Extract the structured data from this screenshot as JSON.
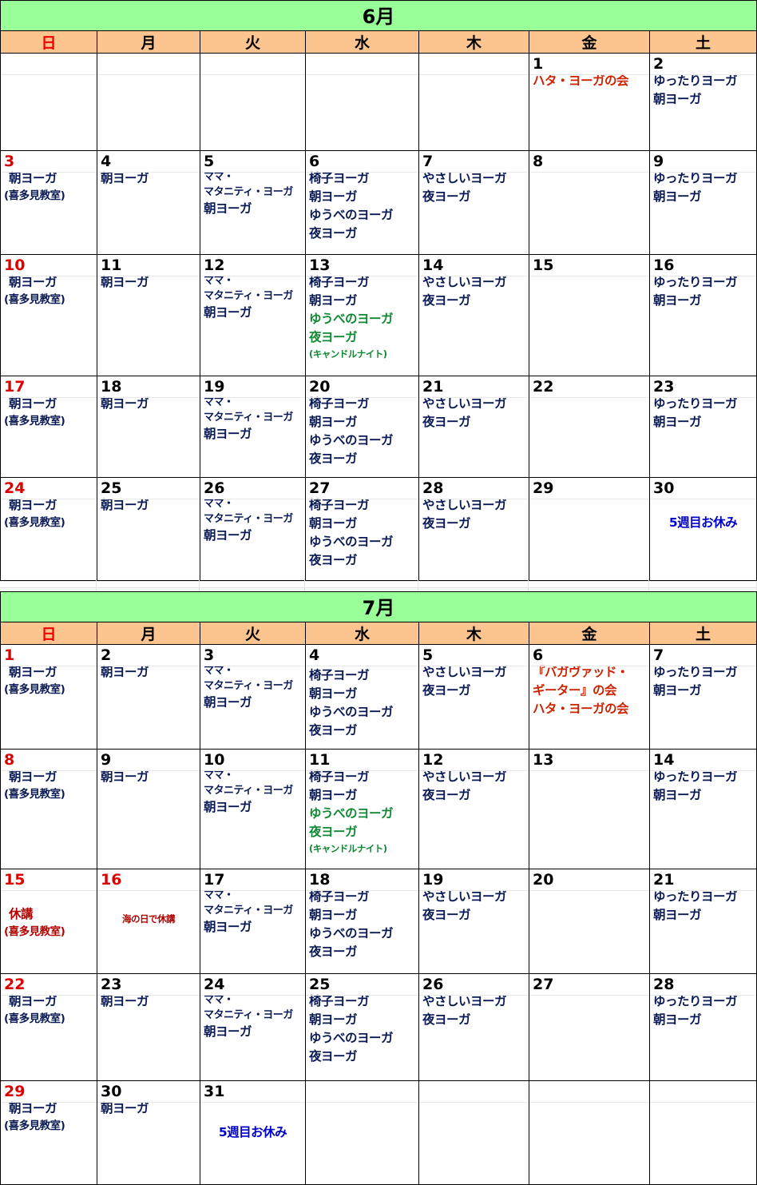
{
  "weekdays": [
    "日",
    "月",
    "火",
    "水",
    "木",
    "金",
    "土"
  ],
  "june": {
    "title": "6月",
    "weeks": [
      [
        {
          "day": "",
          "events": []
        },
        {
          "day": "",
          "events": []
        },
        {
          "day": "",
          "events": []
        },
        {
          "day": "",
          "events": []
        },
        {
          "day": "",
          "events": []
        },
        {
          "day": "1",
          "events": [
            {
              "text": "ハタ・ヨーガの会",
              "style": "red"
            }
          ]
        },
        {
          "day": "2",
          "events": [
            {
              "text": "ゆったりヨーガ"
            },
            {
              "text": "朝ヨーガ"
            }
          ]
        }
      ],
      [
        {
          "day": "3",
          "events": [
            {
              "text": "朝ヨーガ",
              "style": "ind"
            },
            {
              "text": "(喜多見教室)",
              "style": "small"
            }
          ]
        },
        {
          "day": "4",
          "events": [
            {
              "text": "朝ヨーガ"
            }
          ]
        },
        {
          "day": "5",
          "events": [
            {
              "text": "ママ・",
              "style": "sub"
            },
            {
              "text": "マタニティ・ヨーガ",
              "style": "sub"
            },
            {
              "text": "朝ヨーガ"
            }
          ]
        },
        {
          "day": "6",
          "events": [
            {
              "text": "椅子ヨーガ"
            },
            {
              "text": "朝ヨーガ"
            },
            {
              "text": "ゆうべのヨーガ"
            },
            {
              "text": "夜ヨーガ"
            }
          ]
        },
        {
          "day": "7",
          "events": [
            {
              "text": "やさしいヨーガ"
            },
            {
              "text": "夜ヨーガ"
            }
          ]
        },
        {
          "day": "8",
          "events": []
        },
        {
          "day": "9",
          "events": [
            {
              "text": "ゆったりヨーガ"
            },
            {
              "text": "朝ヨーガ"
            }
          ]
        }
      ],
      [
        {
          "day": "10",
          "events": [
            {
              "text": "朝ヨーガ",
              "style": "ind"
            },
            {
              "text": "(喜多見教室)",
              "style": "small"
            }
          ]
        },
        {
          "day": "11",
          "events": [
            {
              "text": "朝ヨーガ"
            }
          ]
        },
        {
          "day": "12",
          "events": [
            {
              "text": "ママ・",
              "style": "sub"
            },
            {
              "text": "マタニティ・ヨーガ",
              "style": "sub"
            },
            {
              "text": "朝ヨーガ"
            }
          ]
        },
        {
          "day": "13",
          "events": [
            {
              "text": "椅子ヨーガ"
            },
            {
              "text": "朝ヨーガ"
            },
            {
              "text": "ゆうべのヨーガ",
              "style": "green"
            },
            {
              "text": "夜ヨーガ",
              "style": "green"
            },
            {
              "text": "(キャンドルナイト)",
              "style": "green-xs"
            }
          ]
        },
        {
          "day": "14",
          "events": [
            {
              "text": "やさしいヨーガ"
            },
            {
              "text": "夜ヨーガ"
            }
          ]
        },
        {
          "day": "15",
          "events": []
        },
        {
          "day": "16",
          "events": [
            {
              "text": "ゆったりヨーガ"
            },
            {
              "text": "朝ヨーガ"
            }
          ]
        }
      ],
      [
        {
          "day": "17",
          "events": [
            {
              "text": "朝ヨーガ",
              "style": "ind"
            },
            {
              "text": "(喜多見教室)",
              "style": "small"
            }
          ]
        },
        {
          "day": "18",
          "events": [
            {
              "text": "朝ヨーガ"
            }
          ]
        },
        {
          "day": "19",
          "events": [
            {
              "text": "ママ・",
              "style": "sub"
            },
            {
              "text": "マタニティ・ヨーガ",
              "style": "sub"
            },
            {
              "text": "朝ヨーガ"
            }
          ]
        },
        {
          "day": "20",
          "events": [
            {
              "text": "椅子ヨーガ"
            },
            {
              "text": "朝ヨーガ"
            },
            {
              "text": "ゆうべのヨーガ"
            },
            {
              "text": "夜ヨーガ"
            }
          ]
        },
        {
          "day": "21",
          "events": [
            {
              "text": "やさしいヨーガ"
            },
            {
              "text": "夜ヨーガ"
            }
          ]
        },
        {
          "day": "22",
          "events": []
        },
        {
          "day": "23",
          "events": [
            {
              "text": "ゆったりヨーガ"
            },
            {
              "text": "朝ヨーガ"
            }
          ]
        }
      ],
      [
        {
          "day": "24",
          "events": [
            {
              "text": "朝ヨーガ",
              "style": "ind"
            },
            {
              "text": "(喜多見教室)",
              "style": "small"
            }
          ]
        },
        {
          "day": "25",
          "events": [
            {
              "text": "朝ヨーガ"
            }
          ]
        },
        {
          "day": "26",
          "events": [
            {
              "text": "ママ・",
              "style": "sub"
            },
            {
              "text": "マタニティ・ヨーガ",
              "style": "sub"
            },
            {
              "text": "朝ヨーガ"
            }
          ]
        },
        {
          "day": "27",
          "events": [
            {
              "text": "椅子ヨーガ"
            },
            {
              "text": "朝ヨーガ"
            },
            {
              "text": "ゆうべのヨーガ"
            },
            {
              "text": "夜ヨーガ"
            }
          ]
        },
        {
          "day": "28",
          "events": [
            {
              "text": "やさしいヨーガ"
            },
            {
              "text": "夜ヨーガ"
            }
          ]
        },
        {
          "day": "29",
          "events": []
        },
        {
          "day": "30",
          "events": [
            {
              "text": "5週目お休み",
              "style": "blue-rest"
            }
          ]
        }
      ]
    ]
  },
  "july": {
    "title": "7月",
    "weeks": [
      [
        {
          "day": "1",
          "events": [
            {
              "text": "朝ヨーガ",
              "style": "ind"
            },
            {
              "text": "(喜多見教室)",
              "style": "small"
            }
          ]
        },
        {
          "day": "2",
          "events": [
            {
              "text": "朝ヨーガ"
            }
          ]
        },
        {
          "day": "3",
          "events": [
            {
              "text": "ママ・",
              "style": "sub"
            },
            {
              "text": "マタニティ・ヨーガ",
              "style": "sub"
            },
            {
              "text": "朝ヨーガ"
            }
          ]
        },
        {
          "day": "4",
          "events": [
            {
              "text": "椅子ヨーガ",
              "style": "gapsmall"
            },
            {
              "text": "朝ヨーガ"
            },
            {
              "text": "ゆうべのヨーガ"
            },
            {
              "text": "夜ヨーガ"
            }
          ]
        },
        {
          "day": "5",
          "events": [
            {
              "text": "やさしいヨーガ"
            },
            {
              "text": "夜ヨーガ"
            }
          ]
        },
        {
          "day": "6",
          "events": [
            {
              "text": "『バガヴァッド・",
              "style": "red"
            },
            {
              "text": "ギーター』の会",
              "style": "red"
            },
            {
              "text": "ハタ・ヨーガの会",
              "style": "red"
            }
          ]
        },
        {
          "day": "7",
          "events": [
            {
              "text": "ゆったりヨーガ"
            },
            {
              "text": "朝ヨーガ"
            }
          ]
        }
      ],
      [
        {
          "day": "8",
          "events": [
            {
              "text": "朝ヨーガ",
              "style": "ind"
            },
            {
              "text": "(喜多見教室)",
              "style": "small"
            }
          ]
        },
        {
          "day": "9",
          "events": [
            {
              "text": "朝ヨーガ"
            }
          ]
        },
        {
          "day": "10",
          "events": [
            {
              "text": "ママ・",
              "style": "sub"
            },
            {
              "text": "マタニティ・ヨーガ",
              "style": "sub"
            },
            {
              "text": "朝ヨーガ"
            }
          ]
        },
        {
          "day": "11",
          "events": [
            {
              "text": "椅子ヨーガ"
            },
            {
              "text": "朝ヨーガ"
            },
            {
              "text": "ゆうべのヨーガ",
              "style": "green"
            },
            {
              "text": "夜ヨーガ",
              "style": "green"
            },
            {
              "text": "(キャンドルナイト)",
              "style": "green-xs"
            }
          ]
        },
        {
          "day": "12",
          "events": [
            {
              "text": "やさしいヨーガ"
            },
            {
              "text": "夜ヨーガ"
            }
          ]
        },
        {
          "day": "13",
          "events": []
        },
        {
          "day": "14",
          "events": [
            {
              "text": "ゆったりヨーガ"
            },
            {
              "text": "朝ヨーガ"
            }
          ]
        }
      ],
      [
        {
          "day": "15",
          "events": [
            {
              "text": "休講",
              "style": "darkred-rest"
            },
            {
              "text": "(喜多見教室)",
              "style": "darkred-small"
            }
          ]
        },
        {
          "day": "16",
          "events": [
            {
              "text": "海の日で休講",
              "style": "darkred-center"
            }
          ]
        },
        {
          "day": "17",
          "events": [
            {
              "text": "ママ・",
              "style": "sub"
            },
            {
              "text": "マタニティ・ヨーガ",
              "style": "sub"
            },
            {
              "text": "朝ヨーガ"
            }
          ]
        },
        {
          "day": "18",
          "events": [
            {
              "text": "椅子ヨーガ"
            },
            {
              "text": "朝ヨーガ"
            },
            {
              "text": "ゆうべのヨーガ"
            },
            {
              "text": "夜ヨーガ"
            }
          ]
        },
        {
          "day": "19",
          "events": [
            {
              "text": "やさしいヨーガ"
            },
            {
              "text": "夜ヨーガ"
            }
          ]
        },
        {
          "day": "20",
          "events": []
        },
        {
          "day": "21",
          "events": [
            {
              "text": "ゆったりヨーガ"
            },
            {
              "text": "朝ヨーガ"
            }
          ]
        }
      ],
      [
        {
          "day": "22",
          "events": [
            {
              "text": "朝ヨーガ",
              "style": "ind"
            },
            {
              "text": "(喜多見教室)",
              "style": "small"
            }
          ]
        },
        {
          "day": "23",
          "events": [
            {
              "text": "朝ヨーガ"
            }
          ]
        },
        {
          "day": "24",
          "events": [
            {
              "text": "ママ・",
              "style": "sub"
            },
            {
              "text": "マタニティ・ヨーガ",
              "style": "sub"
            },
            {
              "text": "朝ヨーガ"
            }
          ]
        },
        {
          "day": "25",
          "events": [
            {
              "text": "椅子ヨーガ"
            },
            {
              "text": "朝ヨーガ"
            },
            {
              "text": "ゆうべのヨーガ"
            },
            {
              "text": "夜ヨーガ"
            }
          ]
        },
        {
          "day": "26",
          "events": [
            {
              "text": "やさしいヨーガ"
            },
            {
              "text": "夜ヨーガ"
            }
          ]
        },
        {
          "day": "27",
          "events": []
        },
        {
          "day": "28",
          "events": [
            {
              "text": "ゆったりヨーガ"
            },
            {
              "text": "朝ヨーガ"
            }
          ]
        }
      ],
      [
        {
          "day": "29",
          "events": [
            {
              "text": "朝ヨーガ",
              "style": "ind"
            },
            {
              "text": "(喜多見教室)",
              "style": "small"
            }
          ]
        },
        {
          "day": "30",
          "events": [
            {
              "text": "朝ヨーガ"
            }
          ]
        },
        {
          "day": "31",
          "events": [
            {
              "text": "5週目お休み",
              "style": "blue-rest"
            }
          ]
        },
        {
          "day": "",
          "events": []
        },
        {
          "day": "",
          "events": []
        },
        {
          "day": "",
          "events": []
        },
        {
          "day": "",
          "events": []
        }
      ]
    ]
  }
}
